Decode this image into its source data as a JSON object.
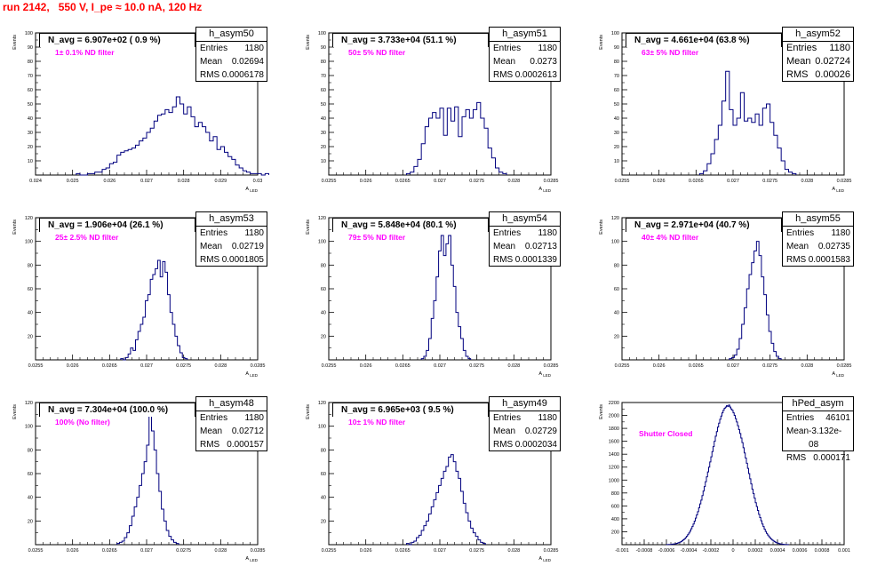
{
  "run_title": "run 2142,   550 V, I_pe ≈ 10.0 nA, 120 Hz",
  "stat_labels": {
    "entries": "Entries",
    "mean": "Mean",
    "rms": "RMS"
  },
  "colors": {
    "histogram": "#00007f",
    "title": "#ff0000",
    "filter_label": "#ff00ff"
  },
  "chart_data": [
    {
      "type": "bar",
      "name": "h_asym50",
      "navg": "N_avg = 6.907e+02 ( 0.9 %)",
      "filter": "1± 0.1% ND filter",
      "entries": "1180",
      "mean": "0.02694",
      "rms": "0.0006178",
      "big_stats": false,
      "ylabel": "Events",
      "xlabel": "A_LED",
      "xlim": [
        0.024,
        0.03
      ],
      "ylim": [
        0,
        100
      ],
      "yticks": [
        0,
        10,
        20,
        30,
        40,
        50,
        60,
        70,
        80,
        90,
        100
      ],
      "ytick_labels": [
        "",
        "10",
        "20",
        "30",
        "40",
        "50",
        "60",
        "70",
        "80",
        "90",
        "100"
      ],
      "xticks": [
        0.024,
        0.025,
        0.026,
        0.027,
        0.028,
        0.029,
        0.03
      ],
      "xtick_labels": [
        "0.024",
        "0.025",
        "0.026",
        "0.027",
        "0.028",
        "0.029",
        "0.03"
      ],
      "bins_start": 0.0251,
      "bin_width": 0.0001,
      "values": [
        1,
        0,
        0,
        1,
        1,
        2,
        2,
        4,
        5,
        8,
        9,
        14,
        16,
        17,
        18,
        19,
        21,
        24,
        26,
        30,
        33,
        38,
        42,
        43,
        46,
        44,
        48,
        55,
        50,
        43,
        48,
        41,
        34,
        37,
        34,
        30,
        24,
        27,
        18,
        20,
        16,
        13,
        11,
        7,
        5,
        3,
        2,
        1,
        1,
        1,
        0,
        1
      ]
    },
    {
      "type": "bar",
      "name": "h_asym51",
      "navg": "N_avg = 3.733e+04 (51.1 %)",
      "filter": "50± 5% ND filter",
      "entries": "1180",
      "mean": "0.0273",
      "rms": "0.0002613",
      "big_stats": false,
      "ylabel": "Events",
      "xlabel": "A_LED",
      "xlim": [
        0.0255,
        0.0285
      ],
      "ylim": [
        0,
        100
      ],
      "yticks": [
        0,
        10,
        20,
        30,
        40,
        50,
        60,
        70,
        80,
        90,
        100
      ],
      "ytick_labels": [
        "",
        "10",
        "20",
        "30",
        "40",
        "50",
        "60",
        "70",
        "80",
        "90",
        "100"
      ],
      "xticks": [
        0.0255,
        0.026,
        0.0265,
        0.027,
        0.0275,
        0.028,
        0.0285
      ],
      "xtick_labels": [
        "0.0255",
        "0.026",
        "0.0265",
        "0.027",
        "0.0275",
        "0.028",
        "0.0285"
      ],
      "bins_start": 0.02655,
      "bin_width": 5e-05,
      "values": [
        1,
        2,
        6,
        11,
        22,
        34,
        40,
        44,
        40,
        47,
        28,
        47,
        38,
        48,
        27,
        41,
        46,
        40,
        46,
        51,
        40,
        33,
        19,
        12,
        5,
        2,
        1
      ]
    },
    {
      "type": "bar",
      "name": "h_asym52",
      "navg": "N_avg = 4.661e+04 (63.8 %)",
      "filter": "63± 5% ND filter",
      "entries": "1180",
      "mean": "0.02724",
      "rms": "0.00026",
      "big_stats": true,
      "ylabel": "Events",
      "xlabel": "A_LED",
      "xlim": [
        0.0255,
        0.0285
      ],
      "ylim": [
        0,
        100
      ],
      "yticks": [
        0,
        10,
        20,
        30,
        40,
        50,
        60,
        70,
        80,
        90,
        100
      ],
      "ytick_labels": [
        "",
        "10",
        "20",
        "30",
        "40",
        "50",
        "60",
        "70",
        "80",
        "90",
        "100"
      ],
      "xticks": [
        0.0255,
        0.026,
        0.0265,
        0.027,
        0.0275,
        0.028,
        0.0285
      ],
      "xtick_labels": [
        "0.0255",
        "0.026",
        "0.0265",
        "0.027",
        "0.0275",
        "0.028",
        "0.0285"
      ],
      "bins_start": 0.02655,
      "bin_width": 5e-05,
      "values": [
        1,
        3,
        8,
        15,
        25,
        35,
        52,
        73,
        46,
        35,
        40,
        58,
        38,
        40,
        37,
        43,
        35,
        47,
        50,
        37,
        28,
        19,
        10,
        4,
        2,
        1
      ]
    },
    {
      "type": "bar",
      "name": "h_asym53",
      "navg": "N_avg = 1.906e+04 (26.1 %)",
      "filter": "25± 2.5% ND filter",
      "entries": "1180",
      "mean": "0.02719",
      "rms": "0.0001805",
      "big_stats": false,
      "ylabel": "Events",
      "xlabel": "A_LED",
      "xlim": [
        0.0255,
        0.0285
      ],
      "ylim": [
        0,
        120
      ],
      "yticks": [
        0,
        20,
        40,
        60,
        80,
        100,
        120
      ],
      "ytick_labels": [
        "",
        "20",
        "40",
        "60",
        "80",
        "100",
        "120"
      ],
      "xticks": [
        0.0255,
        0.026,
        0.0265,
        0.027,
        0.0275,
        0.028,
        0.0285
      ],
      "xtick_labels": [
        "0.0255",
        "0.026",
        "0.0265",
        "0.027",
        "0.0275",
        "0.028",
        "0.0285"
      ],
      "bins_start": 0.02665,
      "bin_width": 3.33e-05,
      "values": [
        1,
        0,
        2,
        5,
        10,
        8,
        17,
        24,
        30,
        36,
        50,
        55,
        68,
        72,
        77,
        84,
        70,
        83,
        74,
        55,
        40,
        30,
        20,
        12,
        6,
        2,
        1
      ]
    },
    {
      "type": "bar",
      "name": "h_asym54",
      "navg": "N_avg = 5.848e+04 (80.1 %)",
      "filter": "79± 5% ND filter",
      "entries": "1180",
      "mean": "0.02713",
      "rms": "0.0001339",
      "big_stats": false,
      "ylabel": "Events",
      "xlabel": "A_LED",
      "xlim": [
        0.0255,
        0.0285
      ],
      "ylim": [
        0,
        120
      ],
      "yticks": [
        0,
        20,
        40,
        60,
        80,
        100,
        120
      ],
      "ytick_labels": [
        "",
        "20",
        "40",
        "60",
        "80",
        "100",
        "120"
      ],
      "xticks": [
        0.0255,
        0.026,
        0.0265,
        0.027,
        0.0275,
        0.028,
        0.0285
      ],
      "xtick_labels": [
        "0.0255",
        "0.026",
        "0.0265",
        "0.027",
        "0.0275",
        "0.028",
        "0.0285"
      ],
      "bins_start": 0.02675,
      "bin_width": 3.33e-05,
      "values": [
        1,
        3,
        8,
        18,
        35,
        50,
        70,
        92,
        105,
        88,
        98,
        105,
        80,
        62,
        40,
        28,
        18,
        8,
        3,
        1
      ]
    },
    {
      "type": "bar",
      "name": "h_asym55",
      "navg": "N_avg = 2.971e+04 (40.7 %)",
      "filter": "40± 4% ND filter",
      "entries": "1180",
      "mean": "0.02735",
      "rms": "0.0001583",
      "big_stats": false,
      "ylabel": "Events",
      "xlabel": "A_LED",
      "xlim": [
        0.0255,
        0.0285
      ],
      "ylim": [
        0,
        120
      ],
      "yticks": [
        0,
        20,
        40,
        60,
        80,
        100,
        120
      ],
      "ytick_labels": [
        "",
        "20",
        "40",
        "60",
        "80",
        "100",
        "120"
      ],
      "xticks": [
        0.0255,
        0.026,
        0.0265,
        0.027,
        0.0275,
        0.028,
        0.0285
      ],
      "xtick_labels": [
        "0.0255",
        "0.026",
        "0.0265",
        "0.027",
        "0.0275",
        "0.028",
        "0.0285"
      ],
      "bins_start": 0.02695,
      "bin_width": 3.33e-05,
      "values": [
        1,
        2,
        4,
        9,
        18,
        30,
        44,
        60,
        72,
        82,
        92,
        100,
        88,
        70,
        55,
        38,
        24,
        14,
        7,
        3,
        1
      ]
    },
    {
      "type": "bar",
      "name": "h_asym48",
      "navg": "N_avg = 7.304e+04 (100.0 %)",
      "filter": "100% (No filter)",
      "entries": "1180",
      "mean": "0.02712",
      "rms": "0.000157",
      "big_stats": false,
      "ylabel": "Events",
      "xlabel": "A_LED",
      "xlim": [
        0.0255,
        0.0285
      ],
      "ylim": [
        0,
        120
      ],
      "yticks": [
        0,
        20,
        40,
        60,
        80,
        100,
        120
      ],
      "ytick_labels": [
        "",
        "20",
        "40",
        "60",
        "80",
        "100",
        "120"
      ],
      "xticks": [
        0.0255,
        0.026,
        0.0265,
        0.027,
        0.0275,
        0.028,
        0.0285
      ],
      "xtick_labels": [
        "0.0255",
        "0.026",
        "0.0265",
        "0.027",
        "0.0275",
        "0.028",
        "0.0285"
      ],
      "bins_start": 0.0266,
      "bin_width": 3.33e-05,
      "values": [
        1,
        2,
        3,
        6,
        10,
        16,
        24,
        32,
        40,
        50,
        60,
        70,
        84,
        110,
        96,
        80,
        60,
        45,
        30,
        20,
        12,
        7,
        4,
        2,
        1
      ]
    },
    {
      "type": "bar",
      "name": "h_asym49",
      "navg": "N_avg = 6.965e+03 ( 9.5 %)",
      "filter": "10± 1% ND filter",
      "entries": "1180",
      "mean": "0.02729",
      "rms": "0.0002034",
      "big_stats": false,
      "ylabel": "Events",
      "xlabel": "A_LED",
      "xlim": [
        0.0255,
        0.0285
      ],
      "ylim": [
        0,
        120
      ],
      "yticks": [
        0,
        20,
        40,
        60,
        80,
        100,
        120
      ],
      "ytick_labels": [
        "",
        "20",
        "40",
        "60",
        "80",
        "100",
        "120"
      ],
      "xticks": [
        0.0255,
        0.026,
        0.0265,
        0.027,
        0.0275,
        0.028,
        0.0285
      ],
      "xtick_labels": [
        "0.0255",
        "0.026",
        "0.0265",
        "0.027",
        "0.0275",
        "0.028",
        "0.0285"
      ],
      "bins_start": 0.02655,
      "bin_width": 3.33e-05,
      "values": [
        1,
        0,
        2,
        3,
        6,
        8,
        12,
        16,
        20,
        26,
        32,
        38,
        44,
        50,
        56,
        62,
        66,
        74,
        76,
        70,
        62,
        56,
        45,
        35,
        27,
        20,
        14,
        10,
        7,
        4,
        2,
        1
      ]
    },
    {
      "type": "bar",
      "name": "hPed_asym",
      "navg": "",
      "filter": "Shutter Closed",
      "entries": "46101",
      "mean": "-3.132e-08",
      "rms": "0.000171",
      "big_stats": false,
      "ylabel": "Events",
      "xlabel": "",
      "xlim": [
        -0.001,
        0.001
      ],
      "ylim": [
        0,
        2200
      ],
      "yticks": [
        0,
        200,
        400,
        600,
        800,
        1000,
        1200,
        1400,
        1600,
        1800,
        2000,
        2200
      ],
      "ytick_labels": [
        "",
        "200",
        "400",
        "600",
        "800",
        "1000",
        "1200",
        "1400",
        "1600",
        "1800",
        "2000",
        "2200"
      ],
      "xticks": [
        -0.001,
        -0.0008,
        -0.0006,
        -0.0004,
        -0.0002,
        0,
        0.0002,
        0.0004,
        0.0006,
        0.0008,
        0.001
      ],
      "xtick_labels": [
        "-0.001",
        "-0.0008",
        "-0.0006",
        "-0.0004",
        "-0.0002",
        "0",
        "0.0002",
        "0.0004",
        "0.0006",
        "0.0008",
        "0.001"
      ],
      "bins_start": -0.0006,
      "bin_width": 1e-05,
      "values": [
        1,
        2,
        3,
        4,
        6,
        8,
        10,
        12,
        15,
        20,
        25,
        32,
        40,
        50,
        60,
        75,
        90,
        110,
        130,
        155,
        180,
        210,
        245,
        280,
        320,
        365,
        410,
        460,
        510,
        570,
        630,
        690,
        760,
        830,
        900,
        975,
        1050,
        1125,
        1200,
        1280,
        1360,
        1440,
        1520,
        1600,
        1680,
        1750,
        1820,
        1880,
        1940,
        1990,
        2040,
        2080,
        2110,
        2130,
        2150,
        2140,
        2160,
        2130,
        2100,
        2080,
        2040,
        2000,
        1950,
        1900,
        1840,
        1780,
        1720,
        1650,
        1580,
        1500,
        1420,
        1340,
        1260,
        1180,
        1100,
        1020,
        940,
        860,
        790,
        720,
        650,
        590,
        530,
        470,
        420,
        370,
        320,
        280,
        240,
        205,
        175,
        150,
        125,
        105,
        88,
        72,
        58,
        47,
        38,
        30,
        24,
        18,
        14,
        10,
        7,
        5,
        3,
        2,
        1,
        1
      ]
    }
  ]
}
